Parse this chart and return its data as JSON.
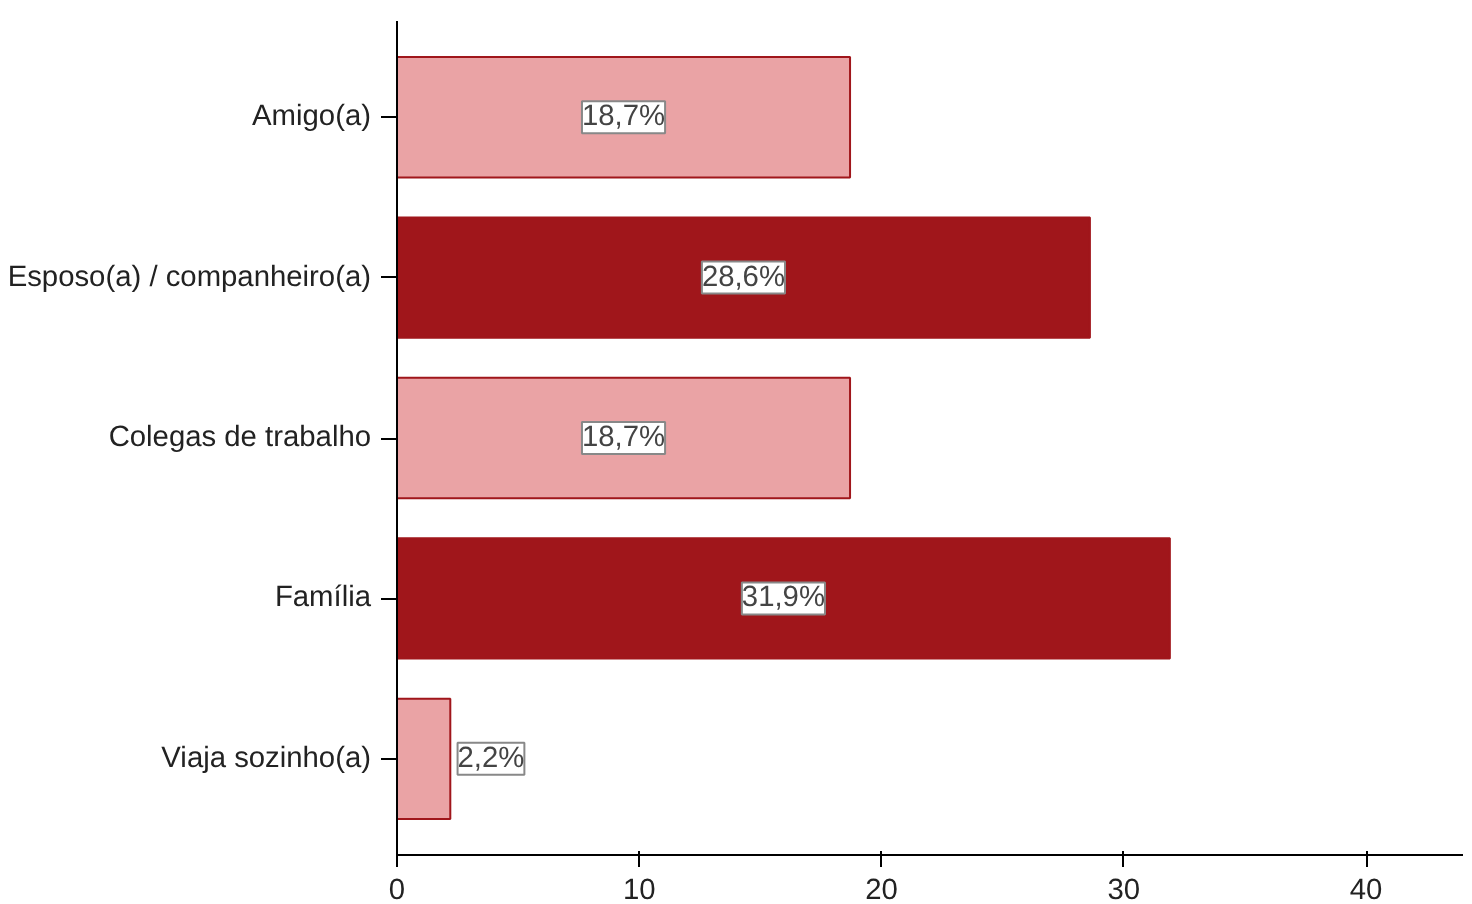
{
  "chart_data": {
    "type": "bar",
    "orientation": "horizontal",
    "categories": [
      "Amigo(a)",
      "Esposo(a) / companheiro(a)",
      "Colegas de trabalho",
      "Família",
      "Viaja sozinho(a)"
    ],
    "values": [
      18.7,
      28.6,
      18.7,
      31.9,
      2.2
    ],
    "colors": [
      "#eaa3a5",
      "#a0161b",
      "#eaa3a5",
      "#a0161b",
      "#eaa3a5"
    ],
    "value_labels": [
      "18,7%",
      "28,6%",
      "18,7%",
      "31,9%",
      "2,2%"
    ],
    "xlim": [
      0,
      44
    ],
    "xticks": [
      0,
      10,
      20,
      30,
      40
    ],
    "grid": false
  }
}
